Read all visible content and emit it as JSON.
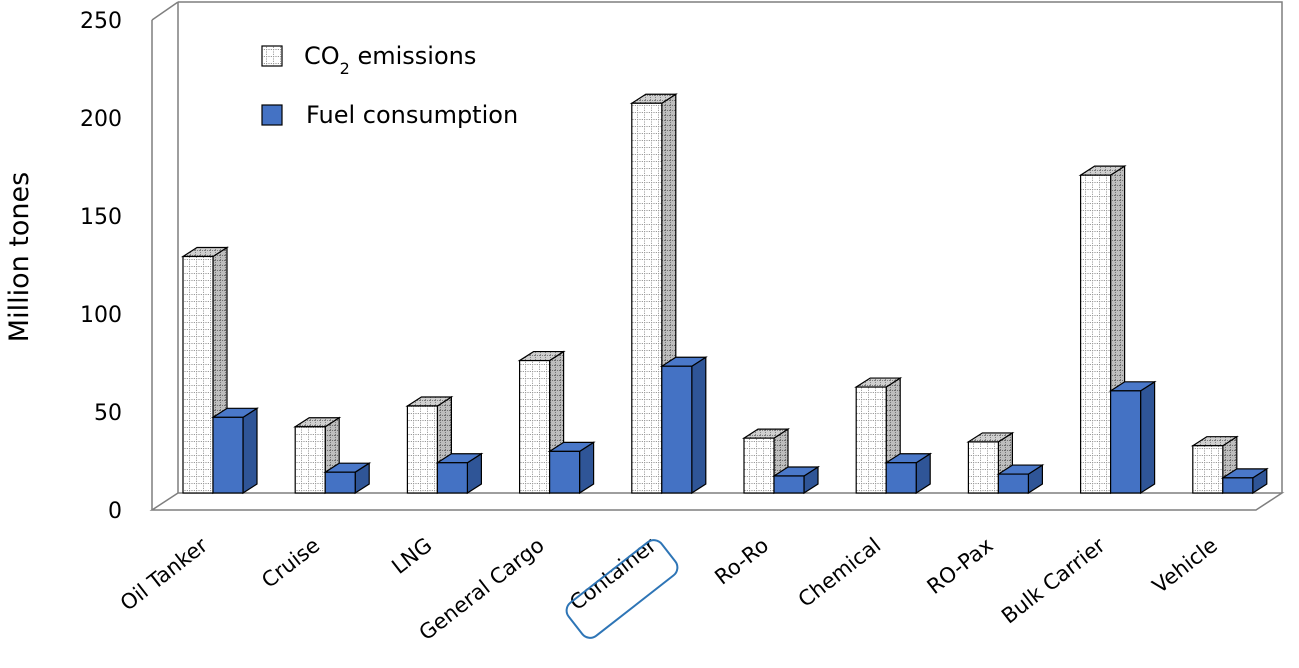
{
  "chart_data": {
    "type": "bar",
    "title": "",
    "xlabel": "",
    "ylabel": "Million tones",
    "ylim": [
      0,
      250
    ],
    "yticks": [
      0,
      50,
      100,
      150,
      200,
      250
    ],
    "categories": [
      "Oil Tanker",
      "Cruise",
      "LNG",
      "General Cargo",
      "Container",
      "Ro-Ro",
      "Chemical",
      "RO-Pax",
      "Bulk Carrier",
      "Vehicle"
    ],
    "highlighted_category": "Container",
    "series": [
      {
        "name": "CO2 emissions",
        "legend_main": "CO",
        "legend_sub": "2",
        "legend_rest": " emissions",
        "color": "#ffffff",
        "pattern": "dotted-grid",
        "values": [
          125,
          35,
          46,
          70,
          206,
          29,
          56,
          27,
          168,
          25
        ]
      },
      {
        "name": "Fuel consumption",
        "legend_label": "Fuel consumption",
        "color": "#4472c4",
        "values": [
          40,
          11,
          16,
          22,
          67,
          9,
          16,
          10,
          54,
          8
        ]
      }
    ],
    "legend_position": "top-left",
    "grid": false
  }
}
